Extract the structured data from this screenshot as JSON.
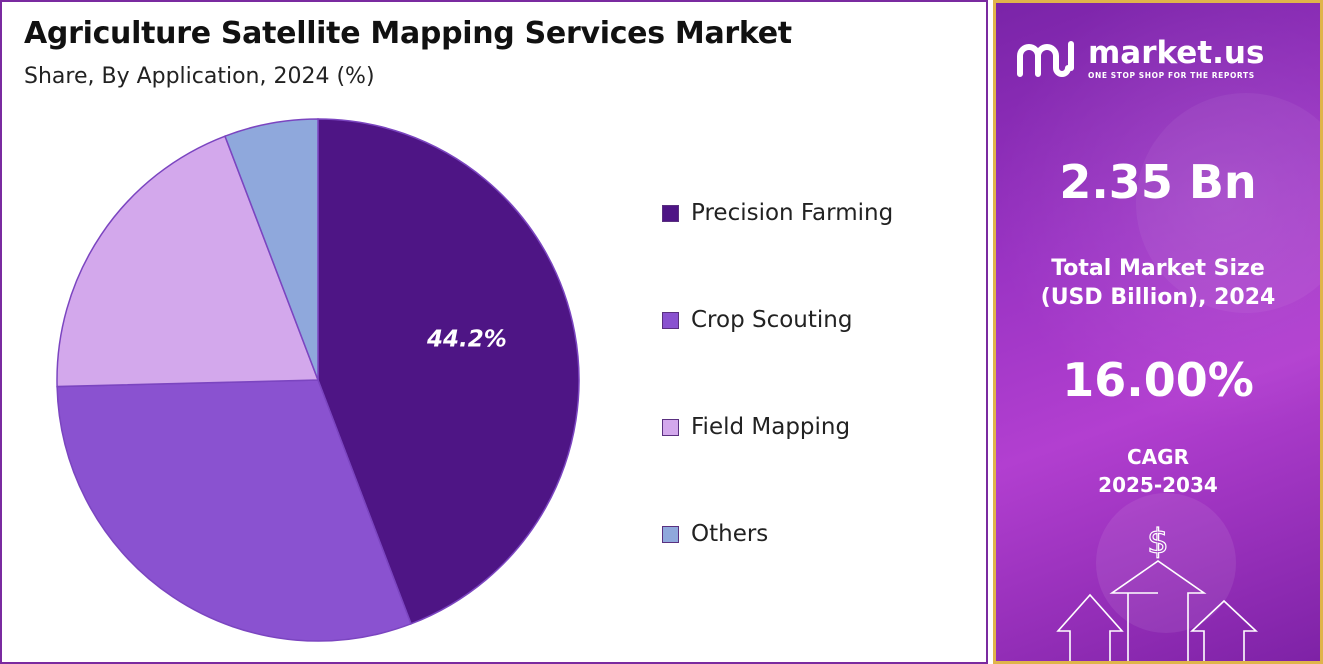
{
  "header": {
    "title": "Agriculture Satellite Mapping Services Market",
    "subtitle": "Share, By Application, 2024 (%)"
  },
  "chart_data": {
    "type": "pie",
    "title": "Agriculture Satellite Mapping Services Market",
    "subtitle": "Share, By Application, 2024 (%)",
    "categories": [
      "Precision Farming",
      "Crop Scouting",
      "Field Mapping",
      "Others"
    ],
    "values": [
      44.2,
      30.4,
      19.6,
      5.8
    ],
    "colors": [
      "#4e1585",
      "#8a52d0",
      "#d3a8ec",
      "#8fa8dc"
    ],
    "labels": [
      "44.2%",
      "",
      "",
      ""
    ],
    "legend_position": "right"
  },
  "sidebar": {
    "brand_name": "market.us",
    "brand_tagline": "ONE STOP SHOP FOR THE REPORTS",
    "market_size_value": "2.35 Bn",
    "market_size_label_line1": "Total Market Size",
    "market_size_label_line2": "(USD Billion), 2024",
    "cagr_value": "16.00%",
    "cagr_label_line1": "CAGR",
    "cagr_label_line2": "2025-2034",
    "currency_symbol": "$"
  }
}
